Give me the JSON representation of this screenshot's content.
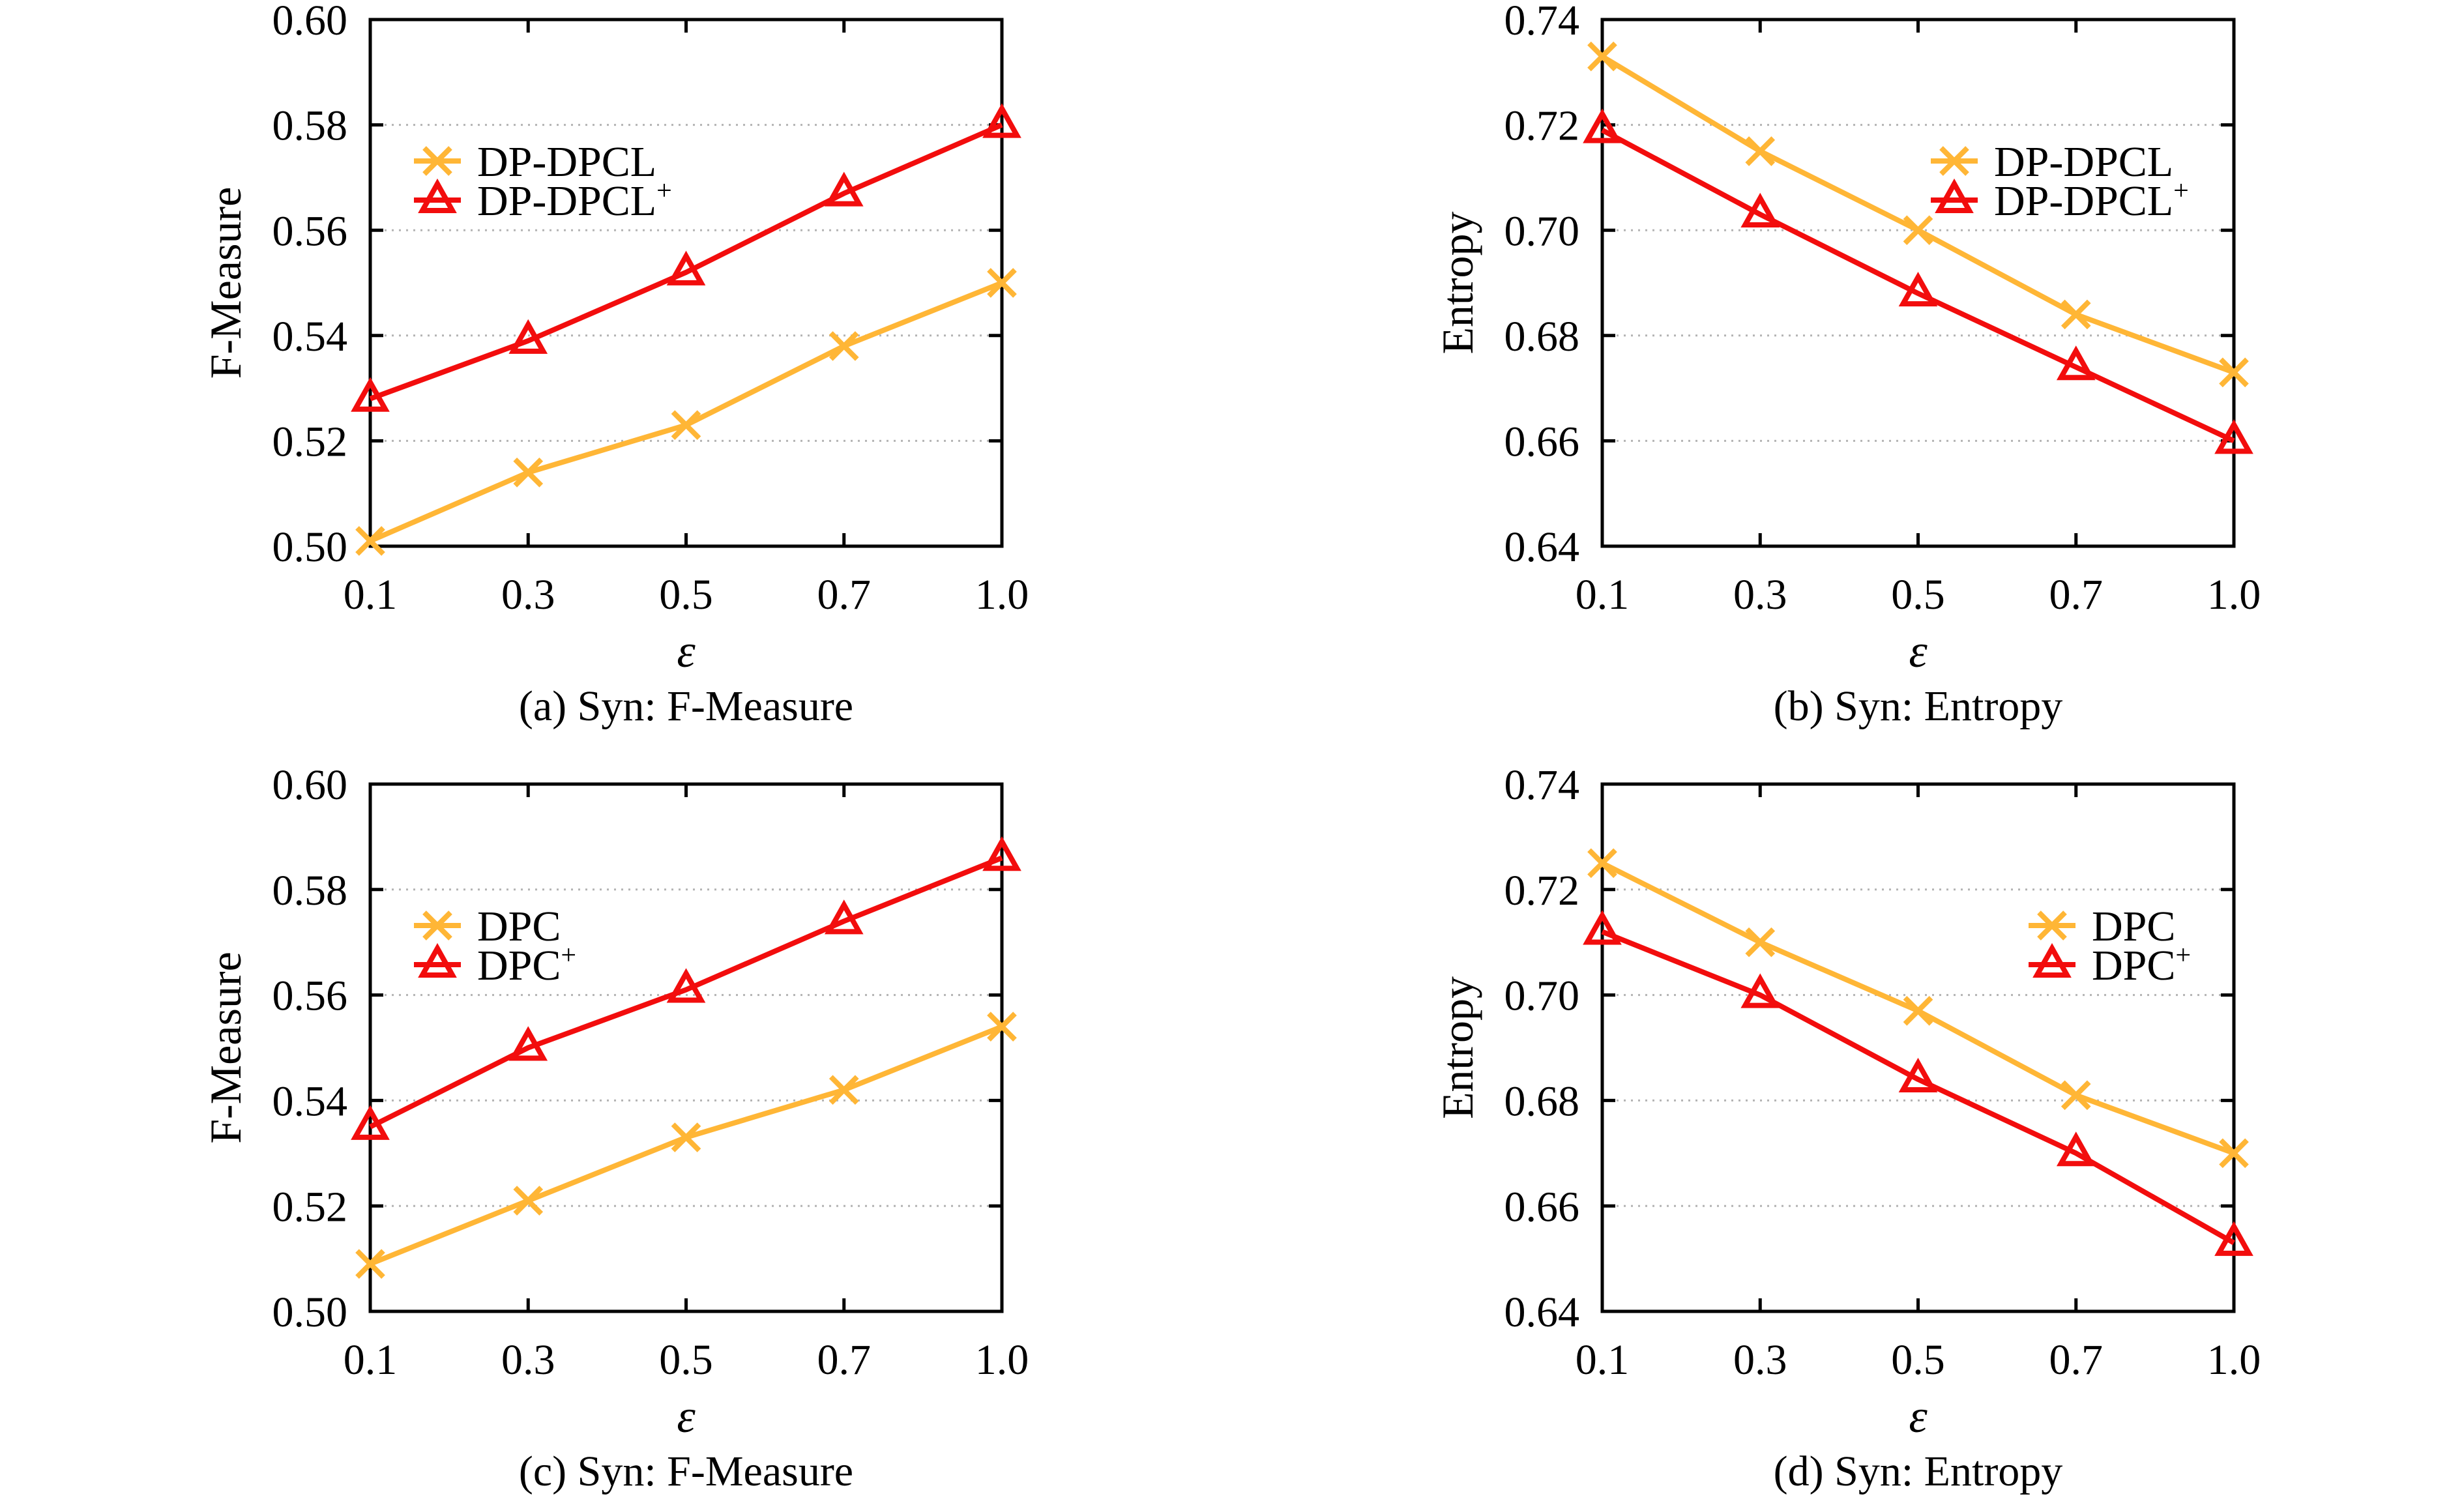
{
  "style": {
    "series_orange": "#FFB636",
    "series_red": "#F20D0D",
    "grid_color": "#B3B3B3",
    "axis_color": "#000000",
    "text_color": "#000000",
    "background": "#FFFFFF"
  },
  "chart_data": [
    {
      "panel": "a",
      "type": "line",
      "caption": "(a) Syn: F-Measure",
      "xlabel": "ε",
      "ylabel": "F-Measure",
      "x_tick_labels": [
        "0.1",
        "0.3",
        "0.5",
        "0.7",
        "1.0"
      ],
      "x_values": [
        0.1,
        0.3,
        0.5,
        0.7,
        1.0
      ],
      "ylim": [
        0.5,
        0.6
      ],
      "yticks": [
        0.5,
        0.52,
        0.54,
        0.56,
        0.58,
        0.6
      ],
      "ytick_labels": [
        "0.50",
        "0.52",
        "0.54",
        "0.56",
        "0.58",
        "0.60"
      ],
      "grid": "horizontal-dotted",
      "legend_position": "upper-left",
      "series": [
        {
          "name": "DP-DPCL",
          "superscript": "",
          "marker": "cross",
          "color": "#FFB636",
          "values": [
            0.501,
            0.514,
            0.523,
            0.538,
            0.55
          ]
        },
        {
          "name": "DP-DPCL",
          "superscript": "+",
          "marker": "triangle-open",
          "color": "#F20D0D",
          "values": [
            0.528,
            0.539,
            0.552,
            0.567,
            0.58
          ]
        }
      ]
    },
    {
      "panel": "b",
      "type": "line",
      "caption": "(b) Syn: Entropy",
      "xlabel": "ε",
      "ylabel": "Entropy",
      "x_tick_labels": [
        "0.1",
        "0.3",
        "0.5",
        "0.7",
        "1.0"
      ],
      "x_values": [
        0.1,
        0.3,
        0.5,
        0.7,
        1.0
      ],
      "ylim": [
        0.64,
        0.74
      ],
      "yticks": [
        0.64,
        0.66,
        0.68,
        0.7,
        0.72,
        0.74
      ],
      "ytick_labels": [
        "0.64",
        "0.66",
        "0.68",
        "0.70",
        "0.72",
        "0.74"
      ],
      "grid": "horizontal-dotted",
      "legend_position": "upper-right",
      "series": [
        {
          "name": "DP-DPCL",
          "superscript": "",
          "marker": "cross",
          "color": "#FFB636",
          "values": [
            0.733,
            0.715,
            0.7,
            0.684,
            0.673
          ]
        },
        {
          "name": "DP-DPCL",
          "superscript": "+",
          "marker": "triangle-open",
          "color": "#F20D0D",
          "values": [
            0.719,
            0.703,
            0.688,
            0.674,
            0.66
          ]
        }
      ]
    },
    {
      "panel": "c",
      "type": "line",
      "caption": "(c) Syn: F-Measure",
      "xlabel": "ε",
      "ylabel": "F-Measure",
      "x_tick_labels": [
        "0.1",
        "0.3",
        "0.5",
        "0.7",
        "1.0"
      ],
      "x_values": [
        0.1,
        0.3,
        0.5,
        0.7,
        1.0
      ],
      "ylim": [
        0.5,
        0.6
      ],
      "yticks": [
        0.5,
        0.52,
        0.54,
        0.56,
        0.58,
        0.6
      ],
      "ytick_labels": [
        "0.50",
        "0.52",
        "0.54",
        "0.56",
        "0.58",
        "0.60"
      ],
      "grid": "horizontal-dotted",
      "legend_position": "upper-left",
      "series": [
        {
          "name": "DPC",
          "superscript": "",
          "marker": "cross",
          "color": "#FFB636",
          "values": [
            0.509,
            0.521,
            0.533,
            0.542,
            0.554
          ]
        },
        {
          "name": "DPC",
          "superscript": "+",
          "marker": "triangle-open",
          "color": "#F20D0D",
          "values": [
            0.535,
            0.55,
            0.561,
            0.574,
            0.586
          ]
        }
      ]
    },
    {
      "panel": "d",
      "type": "line",
      "caption": "(d) Syn: Entropy",
      "xlabel": "ε",
      "ylabel": "Entropy",
      "x_tick_labels": [
        "0.1",
        "0.3",
        "0.5",
        "0.7",
        "1.0"
      ],
      "x_values": [
        0.1,
        0.3,
        0.5,
        0.7,
        1.0
      ],
      "ylim": [
        0.64,
        0.74
      ],
      "yticks": [
        0.64,
        0.66,
        0.68,
        0.7,
        0.72,
        0.74
      ],
      "ytick_labels": [
        "0.64",
        "0.66",
        "0.68",
        "0.70",
        "0.72",
        "0.74"
      ],
      "grid": "horizontal-dotted",
      "legend_position": "upper-right",
      "series": [
        {
          "name": "DPC",
          "superscript": "",
          "marker": "cross",
          "color": "#FFB636",
          "values": [
            0.725,
            0.71,
            0.697,
            0.681,
            0.67
          ]
        },
        {
          "name": "DPC",
          "superscript": "+",
          "marker": "triangle-open",
          "color": "#F20D0D",
          "values": [
            0.712,
            0.7,
            0.684,
            0.67,
            0.653
          ]
        }
      ]
    }
  ]
}
